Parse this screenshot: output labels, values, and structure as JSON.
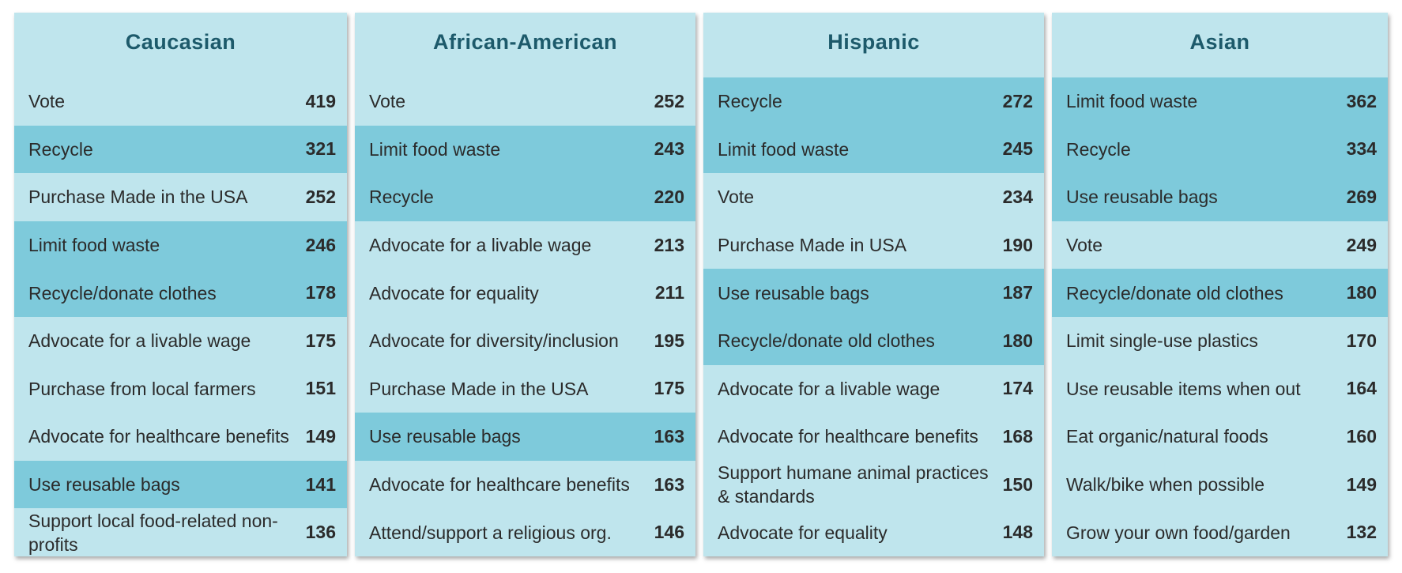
{
  "colors": {
    "panel_bg": "#bfe5ed",
    "highlight_bg": "#7ecadb",
    "title_color": "#1d5a6b",
    "text_color": "#2b2b2b"
  },
  "chart_data": [
    {
      "type": "table",
      "title": "Caucasian",
      "categories": [
        "Vote",
        "Recycle",
        "Purchase Made in the USA",
        "Limit food waste",
        "Recycle/donate clothes",
        "Advocate for a livable wage",
        "Purchase from local farmers",
        "Advocate for healthcare benefits",
        "Use reusable bags",
        "Support local food-related non-profits"
      ],
      "values": [
        419,
        321,
        252,
        246,
        178,
        175,
        151,
        149,
        141,
        136
      ],
      "highlighted": [
        false,
        true,
        false,
        true,
        true,
        false,
        false,
        false,
        true,
        false
      ]
    },
    {
      "type": "table",
      "title": "African-American",
      "categories": [
        "Vote",
        "Limit food waste",
        "Recycle",
        "Advocate for a livable wage",
        "Advocate for equality",
        "Advocate for diversity/inclusion",
        "Purchase Made in the USA",
        "Use reusable bags",
        "Advocate for healthcare benefits",
        "Attend/support a religious org."
      ],
      "values": [
        252,
        243,
        220,
        213,
        211,
        195,
        175,
        163,
        163,
        146
      ],
      "highlighted": [
        false,
        true,
        true,
        false,
        false,
        false,
        false,
        true,
        false,
        false
      ]
    },
    {
      "type": "table",
      "title": "Hispanic",
      "categories": [
        "Recycle",
        "Limit food waste",
        "Vote",
        "Purchase Made in USA",
        "Use reusable bags",
        "Recycle/donate old clothes",
        "Advocate for a livable wage",
        "Advocate for healthcare benefits",
        "Support humane animal practices & standards",
        "Advocate for equality"
      ],
      "values": [
        272,
        245,
        234,
        190,
        187,
        180,
        174,
        168,
        150,
        148
      ],
      "highlighted": [
        true,
        true,
        false,
        false,
        true,
        true,
        false,
        false,
        false,
        false
      ]
    },
    {
      "type": "table",
      "title": "Asian",
      "categories": [
        "Limit food waste",
        "Recycle",
        "Use reusable bags",
        "Vote",
        "Recycle/donate old clothes",
        "Limit single-use plastics",
        "Use reusable items when out",
        "Eat organic/natural foods",
        "Walk/bike when possible",
        "Grow your own food/garden"
      ],
      "values": [
        362,
        334,
        269,
        249,
        180,
        170,
        164,
        160,
        149,
        132
      ],
      "highlighted": [
        true,
        true,
        true,
        false,
        true,
        false,
        false,
        false,
        false,
        false
      ]
    }
  ]
}
